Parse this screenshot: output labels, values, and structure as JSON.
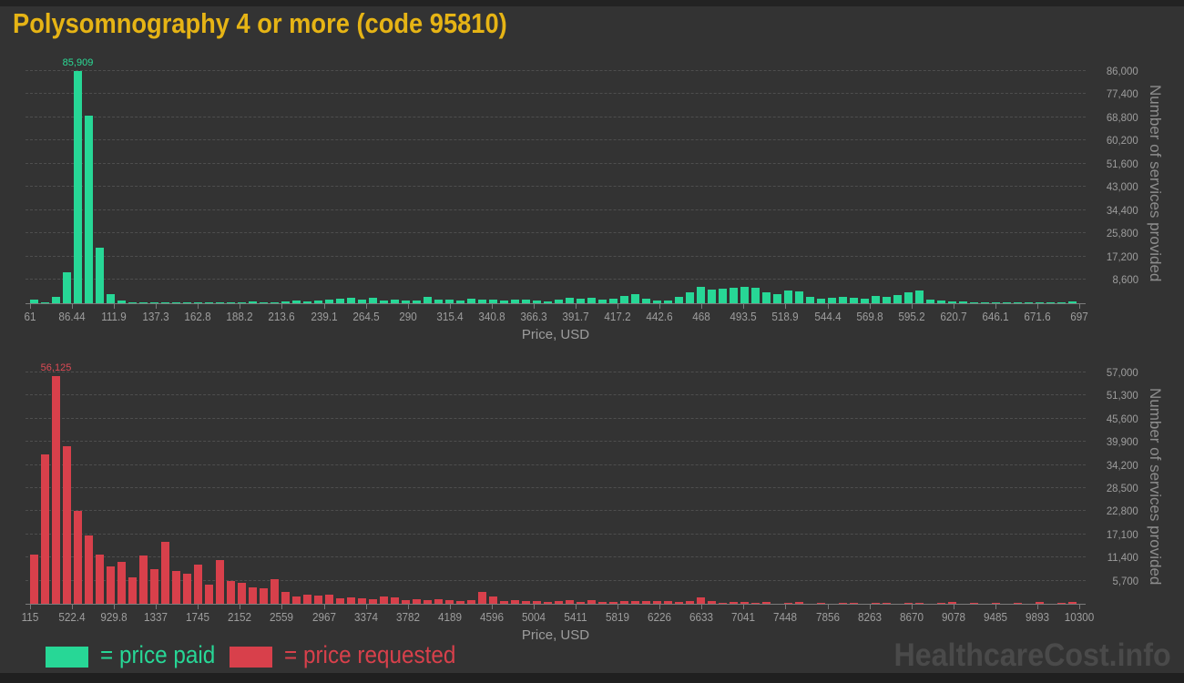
{
  "title": "Polysomnography 4 or more (code 95810)",
  "watermark": "HealthcareCost.info",
  "colors": {
    "background": "#333333",
    "title": "#e6b415",
    "paid_green": "#27d796",
    "requested_red": "#d8404b",
    "grid": "#4e4e4e",
    "axis": "#7a7a7a",
    "tick_text": "#9d9d9d",
    "watermark_text": "#4a4a4a"
  },
  "legend": [
    {
      "label": "= price paid",
      "color": "#27d796"
    },
    {
      "label": "= price requested",
      "color": "#d8404b"
    }
  ],
  "chart_data": [
    {
      "type": "bar",
      "name": "price-paid-histogram",
      "xlabel": "Price, USD",
      "ylabel": "Number of services provided",
      "bar_color": "#27d796",
      "label_color": "#2bdc96",
      "peak_label": "85,909",
      "peak_value": 85909,
      "xlim": [
        61,
        697
      ],
      "ylim": [
        0,
        86000
      ],
      "x_tick_labels": [
        "61",
        "86.44",
        "111.9",
        "137.3",
        "162.8",
        "188.2",
        "213.6",
        "239.1",
        "264.5",
        "290",
        "315.4",
        "340.8",
        "366.3",
        "391.7",
        "417.2",
        "442.6",
        "468",
        "493.5",
        "518.9",
        "544.4",
        "569.8",
        "595.2",
        "620.7",
        "646.1",
        "671.6",
        "697"
      ],
      "y_grid_values": [
        8600,
        17200,
        25800,
        34400,
        43000,
        51600,
        60200,
        68800,
        77400,
        86000
      ],
      "y_grid_labels": [
        "8,600",
        "17,200",
        "25,800",
        "34,400",
        "43,000",
        "51,600",
        "60,200",
        "68,800",
        "77,400",
        "86,000"
      ],
      "bin_start": 61,
      "bin_width": 6.63,
      "values": [
        1400,
        500,
        2400,
        11300,
        85909,
        69500,
        20500,
        3400,
        900,
        500,
        400,
        500,
        300,
        400,
        500,
        400,
        300,
        500,
        400,
        500,
        600,
        400,
        500,
        700,
        900,
        700,
        1100,
        1400,
        1700,
        2100,
        1400,
        2100,
        1000,
        1200,
        900,
        1100,
        2300,
        1300,
        1400,
        1000,
        1600,
        1200,
        1400,
        900,
        1400,
        1200,
        1000,
        700,
        1400,
        2000,
        1700,
        2000,
        1400,
        1700,
        2800,
        3400,
        1700,
        900,
        1100,
        2300,
        4000,
        6200,
        5100,
        5500,
        5700,
        6200,
        5900,
        4000,
        3400,
        4800,
        4500,
        2500,
        1700,
        2000,
        2300,
        2000,
        1700,
        2800,
        2300,
        3200,
        4100,
        4800,
        1400,
        1000,
        800,
        700,
        400,
        300,
        500,
        400,
        300,
        500,
        400,
        300,
        400,
        600
      ]
    },
    {
      "type": "bar",
      "name": "price-requested-histogram",
      "xlabel": "Price, USD",
      "ylabel": "Number of services provided",
      "bar_color": "#d8404b",
      "label_color": "#dd4a55",
      "peak_label": "56,125",
      "peak_value": 56125,
      "xlim": [
        115,
        10300
      ],
      "ylim": [
        0,
        57000
      ],
      "x_tick_labels": [
        "115",
        "522.4",
        "929.8",
        "1337",
        "1745",
        "2152",
        "2559",
        "2967",
        "3374",
        "3782",
        "4189",
        "4596",
        "5004",
        "5411",
        "5819",
        "6226",
        "6633",
        "7041",
        "7448",
        "7856",
        "8263",
        "8670",
        "9078",
        "9485",
        "9893",
        "10300"
      ],
      "y_grid_values": [
        5700,
        11400,
        17100,
        22800,
        28500,
        34200,
        39900,
        45600,
        51300,
        57000
      ],
      "y_grid_labels": [
        "5,700",
        "11,400",
        "17,100",
        "22,800",
        "28,500",
        "34,200",
        "39,900",
        "45,600",
        "51,300",
        "57,000"
      ],
      "bin_start": 115,
      "bin_width": 106.1,
      "values": [
        12100,
        36800,
        56125,
        38800,
        23000,
        16800,
        12100,
        9200,
        10300,
        6500,
        11900,
        8500,
        15300,
        8100,
        7400,
        9700,
        4700,
        10800,
        5600,
        5200,
        4000,
        3800,
        6100,
        2900,
        1800,
        2200,
        2000,
        2200,
        1300,
        1600,
        1300,
        1200,
        1800,
        1500,
        800,
        1200,
        900,
        1100,
        800,
        700,
        900,
        2900,
        1800,
        700,
        900,
        600,
        700,
        500,
        600,
        800,
        500,
        900,
        500,
        400,
        600,
        700,
        600,
        700,
        600,
        500,
        700,
        1600,
        600,
        300,
        400,
        500,
        300,
        400,
        0,
        300,
        400,
        0,
        300,
        0,
        300,
        200,
        0,
        300,
        200,
        0,
        200,
        300,
        0,
        200,
        400,
        0,
        200,
        0,
        200,
        0,
        200,
        0,
        400,
        0,
        300,
        400
      ]
    }
  ]
}
